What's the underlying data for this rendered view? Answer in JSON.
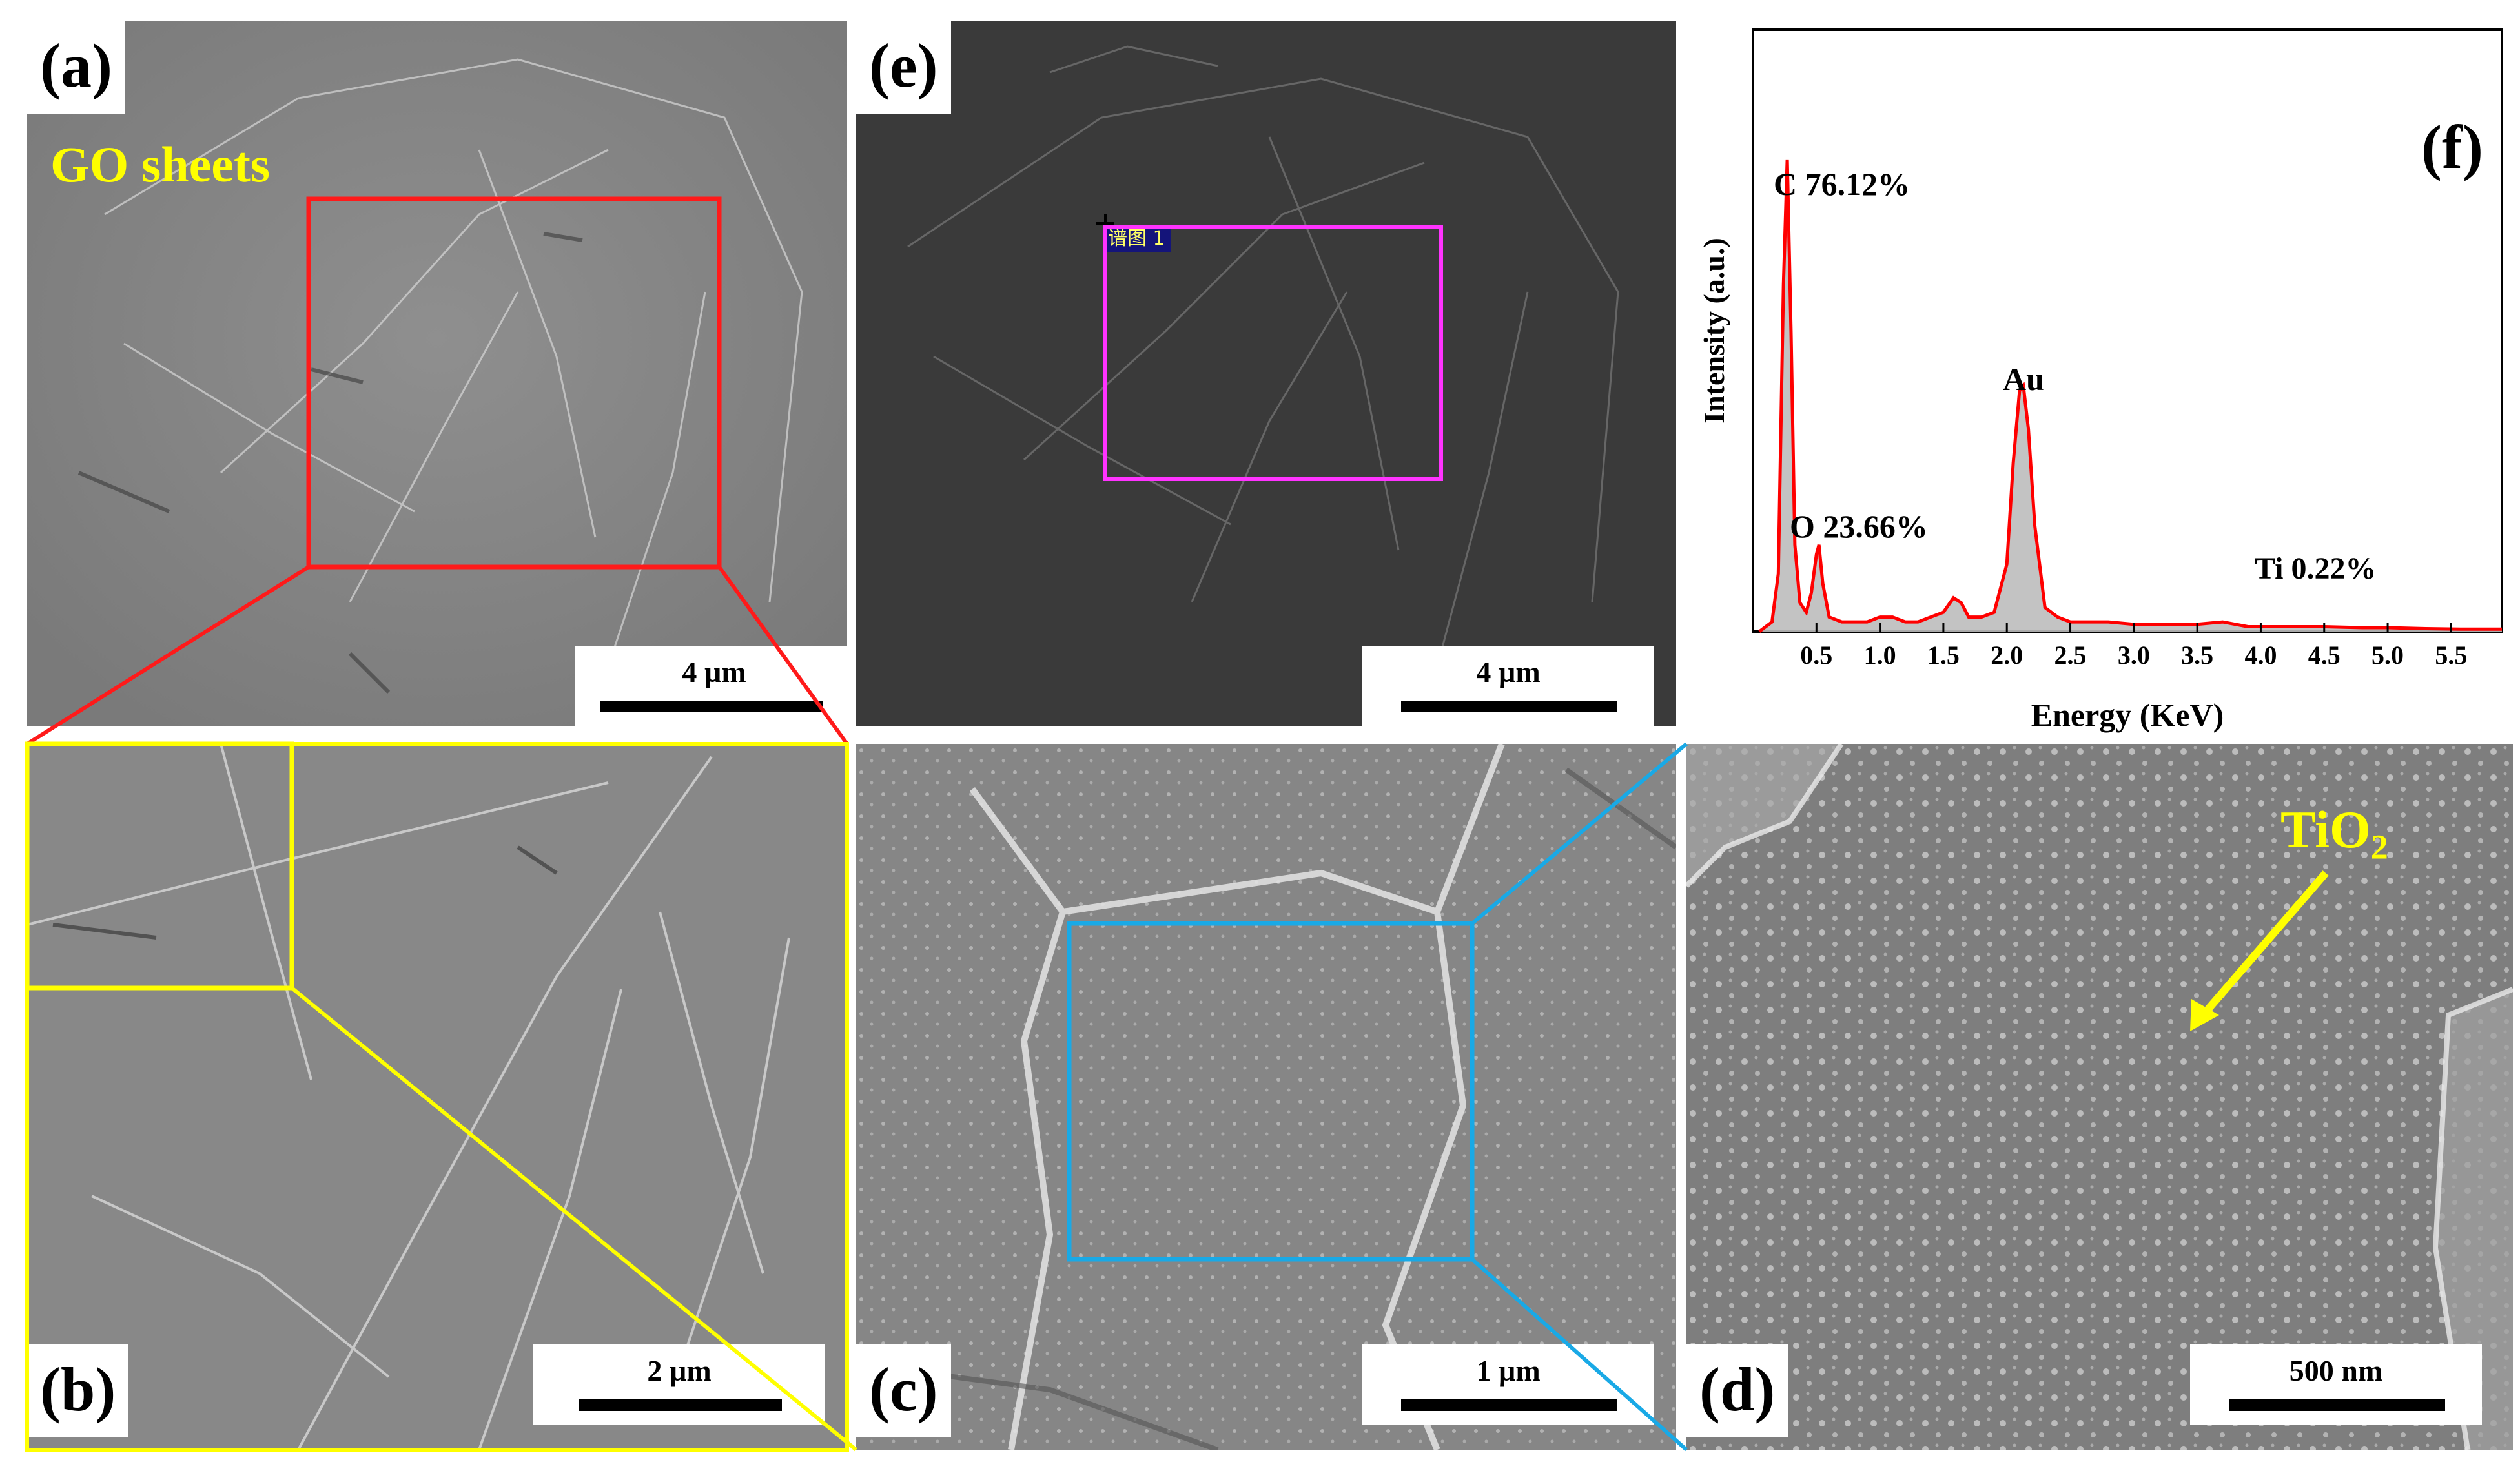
{
  "panels": {
    "a": {
      "label": "(a)",
      "annotation": "GO sheets",
      "scale": "4 µm"
    },
    "b": {
      "label": "(b)",
      "scale": "2 µm"
    },
    "c": {
      "label": "(c)",
      "scale": "1 µm"
    },
    "d": {
      "label": "(d)",
      "scale": "500 nm",
      "annotation_main": "TiO",
      "annotation_sub": "2"
    },
    "e": {
      "label": "(e)",
      "scale": "4 µm",
      "spectrum_tag": "谱图 1"
    },
    "f": {
      "label": "(f)"
    }
  },
  "colors": {
    "red_box": "#ff1a1a",
    "yellow_box": "#ffff00",
    "cyan_box": "#19a9e6",
    "magenta_box": "#ff33ff",
    "annotation_yellow": "#ffff00",
    "spectrum_line": "#ff0000",
    "sem_a": "#8a8a8a",
    "sem_e": "#3c3c3c"
  },
  "chart_data": {
    "type": "line",
    "title": "",
    "xlabel": "Energy (KeV)",
    "ylabel": "Intensity (a.u.)",
    "xlim": [
      0,
      5.9
    ],
    "ylim": [
      0,
      100
    ],
    "xticks": [
      "0.5",
      "1.0",
      "1.5",
      "2.0",
      "2.5",
      "3.0",
      "3.5",
      "4.0",
      "4.5",
      "5.0",
      "5.5"
    ],
    "peaks": [
      {
        "element": "C",
        "label": "C 76.12%",
        "energy": 0.27,
        "intensity": 98
      },
      {
        "element": "O",
        "label": "O 23.66%",
        "energy": 0.52,
        "intensity": 18
      },
      {
        "element": "Au",
        "label": "Au",
        "energy": 2.13,
        "intensity": 51
      },
      {
        "element": "Ti",
        "label": "Ti 0.22%",
        "energy": 4.5,
        "intensity": 1
      }
    ],
    "spectrum": {
      "x": [
        0.05,
        0.15,
        0.2,
        0.24,
        0.27,
        0.3,
        0.33,
        0.37,
        0.42,
        0.46,
        0.5,
        0.52,
        0.55,
        0.6,
        0.7,
        0.8,
        0.9,
        1.0,
        1.1,
        1.2,
        1.3,
        1.4,
        1.5,
        1.58,
        1.64,
        1.7,
        1.8,
        1.9,
        2.0,
        2.05,
        2.1,
        2.13,
        2.17,
        2.22,
        2.3,
        2.4,
        2.5,
        2.6,
        2.8,
        3.0,
        3.2,
        3.5,
        3.7,
        3.9,
        4.2,
        4.5,
        4.8,
        5.0,
        5.3,
        5.6,
        5.9
      ],
      "y": [
        0,
        2,
        12,
        72,
        98,
        62,
        18,
        6,
        4,
        8,
        16,
        18,
        10,
        3,
        2,
        2,
        2,
        3,
        3,
        2,
        2,
        3,
        4,
        7,
        6,
        3,
        3,
        4,
        14,
        35,
        50,
        51,
        42,
        22,
        5,
        3,
        2,
        2,
        2,
        1.5,
        1.5,
        1.5,
        2,
        1,
        1,
        1,
        0.8,
        0.8,
        0.6,
        0.5,
        0.5
      ]
    }
  }
}
